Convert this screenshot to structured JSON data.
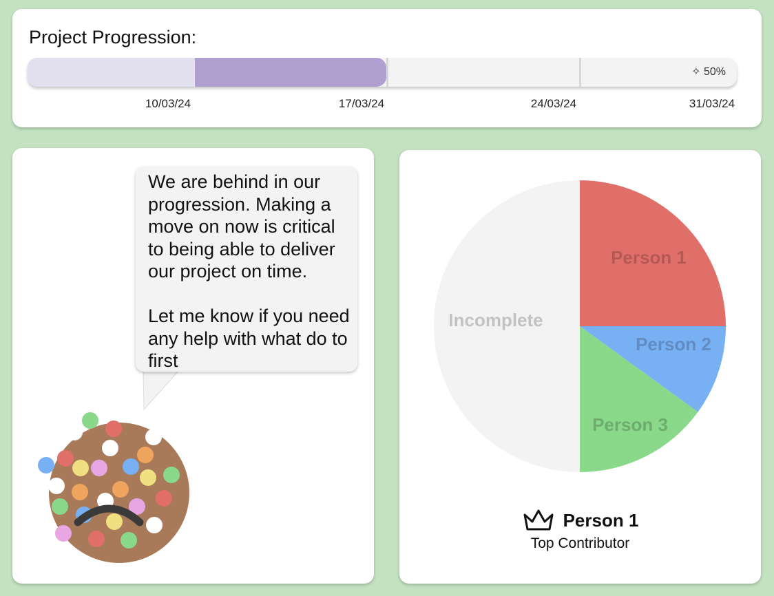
{
  "progress": {
    "title": "Project Progression:",
    "percent_label": "50%",
    "completed_fraction": 0.5,
    "dates": [
      "10/03/24",
      "17/03/24",
      "24/03/24",
      "31/03/24"
    ],
    "colors": {
      "past": "#e2e0ee",
      "current": "#b0a0d0",
      "remaining": "#f3f3f3"
    }
  },
  "message": {
    "text": "We are behind in our progression. Making a move on now is critical to being able to deliver our project on time.\n\nLet me know if you need any help with what do to first",
    "mood": "sad"
  },
  "chart_data": {
    "type": "pie",
    "slices": [
      {
        "label": "Person 1",
        "value": 25,
        "color": "#e06f6a"
      },
      {
        "label": "Person 2",
        "value": 10,
        "color": "#78b0f4"
      },
      {
        "label": "Person 3",
        "value": 15,
        "color": "#8ad88a"
      },
      {
        "label": "Incomplete",
        "value": 50,
        "color": "#f3f3f3"
      }
    ]
  },
  "top_contributor": {
    "name": "Person 1",
    "caption": "Top Contributor",
    "icon": "crown-icon"
  }
}
